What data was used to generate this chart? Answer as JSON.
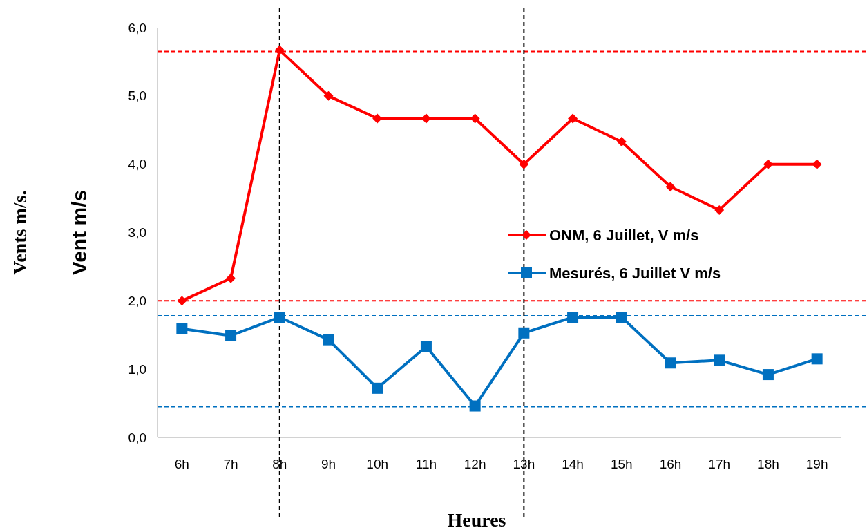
{
  "chart_data": {
    "type": "line",
    "xlabel": "Heures",
    "ylabel": "Vent m/s",
    "annotations": [
      "Vents m/s."
    ],
    "categories": [
      "6h",
      "7h",
      "8h",
      "9h",
      "10h",
      "11h",
      "12h",
      "13h",
      "14h",
      "15h",
      "16h",
      "17h",
      "18h",
      "19h"
    ],
    "series": [
      {
        "name": "ONM, 6 Juillet, V m/s",
        "color": "#ff0000",
        "marker": "diamond",
        "values": [
          2.0,
          2.33,
          5.67,
          5.0,
          4.67,
          4.67,
          4.67,
          4.0,
          4.67,
          4.33,
          3.67,
          3.33,
          4.0,
          4.0
        ]
      },
      {
        "name": "Mesurés, 6 Juillet V m/s",
        "color": "#0070c0",
        "marker": "square",
        "values": [
          1.59,
          1.49,
          1.76,
          1.43,
          0.72,
          1.33,
          0.46,
          1.53,
          1.76,
          1.76,
          1.09,
          1.13,
          0.92,
          1.15
        ]
      }
    ],
    "ylim": [
      0,
      6
    ],
    "yticks": [
      {
        "value": 0,
        "label": "0,0"
      },
      {
        "value": 1,
        "label": "1,0"
      },
      {
        "value": 2,
        "label": "2,0"
      },
      {
        "value": 3,
        "label": "3,0"
      },
      {
        "value": 4,
        "label": "4,0"
      },
      {
        "value": 5,
        "label": "5,0"
      },
      {
        "value": 6,
        "label": "6,0"
      }
    ],
    "ref_lines": [
      {
        "axis": "y",
        "value": 5.65,
        "color": "#ff0000",
        "line_style": "dashed"
      },
      {
        "axis": "y",
        "value": 2.0,
        "color": "#ff0000",
        "line_style": "dashed"
      },
      {
        "axis": "y",
        "value": 1.78,
        "color": "#0070c0",
        "line_style": "dashed"
      },
      {
        "axis": "y",
        "value": 0.45,
        "color": "#0070c0",
        "line_style": "dashed"
      },
      {
        "axis": "x",
        "value": "8h",
        "color": "#000000",
        "line_style": "dashed"
      },
      {
        "axis": "x",
        "value": "13h",
        "color": "#000000",
        "line_style": "dashed"
      }
    ],
    "grid": false,
    "legend": "right",
    "line_style": "solid"
  }
}
